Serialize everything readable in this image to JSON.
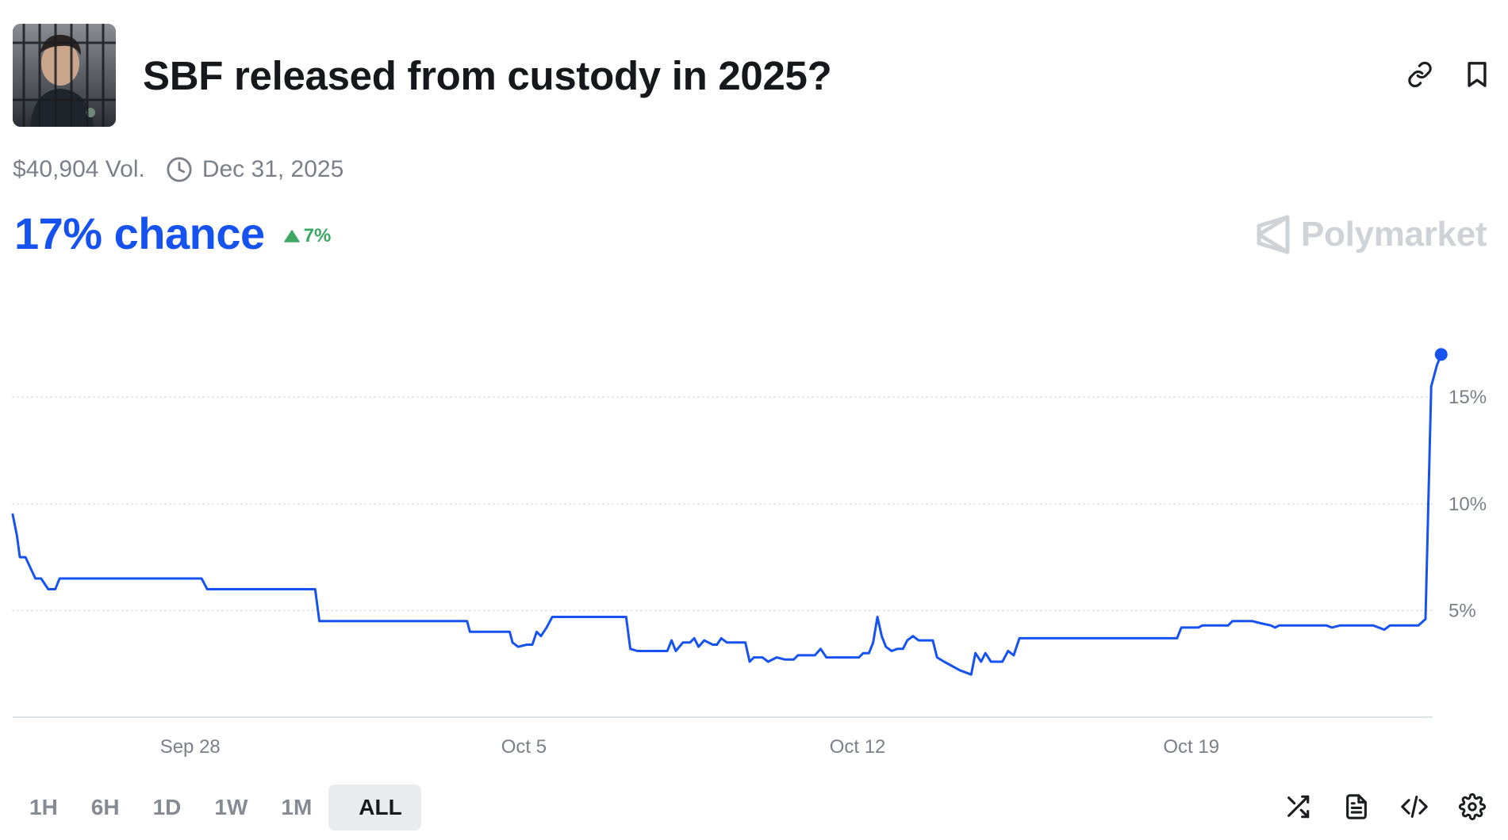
{
  "market": {
    "title": "SBF released from custody in 2025?",
    "volume": "$40,904 Vol.",
    "end_date": "Dec 31, 2025",
    "chance": "17% chance",
    "change": "7%",
    "brand": "Polymarket"
  },
  "colors": {
    "line": "#1652f0",
    "up": "#3aa862",
    "grid": "#d4d7dc",
    "muted": "#7b8088"
  },
  "ranges": {
    "items": [
      "1H",
      "6H",
      "1D",
      "1W",
      "1M",
      "ALL"
    ],
    "selected": "ALL"
  },
  "icons": {
    "header": [
      "link-icon",
      "bookmark-icon"
    ],
    "meta": "clock-icon",
    "toolbar": [
      "shuffle-icon",
      "document-icon",
      "embed-code-icon",
      "settings-gear-icon"
    ]
  },
  "chart_data": {
    "type": "line",
    "title": "",
    "xlabel": "",
    "ylabel": "",
    "y_axis_position": "right",
    "ylim": [
      0,
      19.5
    ],
    "yticks": [
      5,
      10,
      15
    ],
    "ytick_labels": [
      "5%",
      "10%",
      "15%"
    ],
    "xlim": [
      0,
      1000
    ],
    "xticks": [
      125,
      360,
      595,
      830
    ],
    "xtick_labels": [
      "Sep 28",
      "Oct 5",
      "Oct 12",
      "Oct 19"
    ],
    "grid": true,
    "series": [
      {
        "values": [
          [
            0,
            9.5
          ],
          [
            3,
            8.5
          ],
          [
            5,
            7.5
          ],
          [
            9,
            7.5
          ],
          [
            16,
            6.5
          ],
          [
            20,
            6.5
          ],
          [
            25,
            6.0
          ],
          [
            30,
            6.0
          ],
          [
            33,
            6.5
          ],
          [
            133,
            6.5
          ],
          [
            137,
            6.0
          ],
          [
            213,
            6.0
          ],
          [
            216,
            4.5
          ],
          [
            238,
            4.5
          ],
          [
            320,
            4.5
          ],
          [
            322,
            4.0
          ],
          [
            350,
            4.0
          ],
          [
            352,
            3.5
          ],
          [
            356,
            3.3
          ],
          [
            362,
            3.4
          ],
          [
            366,
            3.4
          ],
          [
            369,
            4.0
          ],
          [
            372,
            3.8
          ],
          [
            376,
            4.2
          ],
          [
            380,
            4.7
          ],
          [
            405,
            4.7
          ],
          [
            432,
            4.7
          ],
          [
            435,
            3.2
          ],
          [
            440,
            3.1
          ],
          [
            461,
            3.1
          ],
          [
            464,
            3.6
          ],
          [
            467,
            3.1
          ],
          [
            472,
            3.5
          ],
          [
            477,
            3.5
          ],
          [
            480,
            3.7
          ],
          [
            483,
            3.3
          ],
          [
            487,
            3.6
          ],
          [
            490,
            3.5
          ],
          [
            493,
            3.4
          ],
          [
            496,
            3.4
          ],
          [
            499,
            3.7
          ],
          [
            503,
            3.5
          ],
          [
            516,
            3.5
          ],
          [
            519,
            2.6
          ],
          [
            522,
            2.8
          ],
          [
            528,
            2.8
          ],
          [
            532,
            2.6
          ],
          [
            538,
            2.8
          ],
          [
            544,
            2.7
          ],
          [
            550,
            2.7
          ],
          [
            553,
            2.9
          ],
          [
            565,
            2.9
          ],
          [
            569,
            3.2
          ],
          [
            573,
            2.8
          ],
          [
            584,
            2.8
          ],
          [
            596,
            2.8
          ],
          [
            599,
            3.0
          ],
          [
            603,
            3.0
          ],
          [
            606,
            3.5
          ],
          [
            609,
            4.7
          ],
          [
            612,
            3.8
          ],
          [
            615,
            3.3
          ],
          [
            619,
            3.1
          ],
          [
            623,
            3.2
          ],
          [
            627,
            3.2
          ],
          [
            630,
            3.6
          ],
          [
            634,
            3.8
          ],
          [
            638,
            3.6
          ],
          [
            648,
            3.6
          ],
          [
            651,
            2.8
          ],
          [
            656,
            2.6
          ],
          [
            667,
            2.2
          ],
          [
            675,
            2.0
          ],
          [
            678,
            3.0
          ],
          [
            682,
            2.6
          ],
          [
            685,
            3.0
          ],
          [
            689,
            2.6
          ],
          [
            697,
            2.6
          ],
          [
            701,
            3.1
          ],
          [
            705,
            2.9
          ],
          [
            709,
            3.7
          ],
          [
            820,
            3.7
          ],
          [
            823,
            4.2
          ],
          [
            835,
            4.2
          ],
          [
            838,
            4.3
          ],
          [
            856,
            4.3
          ],
          [
            859,
            4.5
          ],
          [
            873,
            4.5
          ],
          [
            879,
            4.4
          ],
          [
            886,
            4.3
          ],
          [
            889,
            4.2
          ],
          [
            892,
            4.3
          ],
          [
            925,
            4.3
          ],
          [
            929,
            4.2
          ],
          [
            935,
            4.3
          ],
          [
            958,
            4.3
          ],
          [
            962,
            4.2
          ],
          [
            966,
            4.1
          ],
          [
            970,
            4.3
          ],
          [
            990,
            4.3
          ],
          [
            995,
            4.6
          ],
          [
            999,
            15.5
          ],
          [
            1003,
            16.5
          ],
          [
            1006,
            17.0
          ]
        ]
      }
    ],
    "endpoint": [
      1006,
      17.0
    ]
  }
}
